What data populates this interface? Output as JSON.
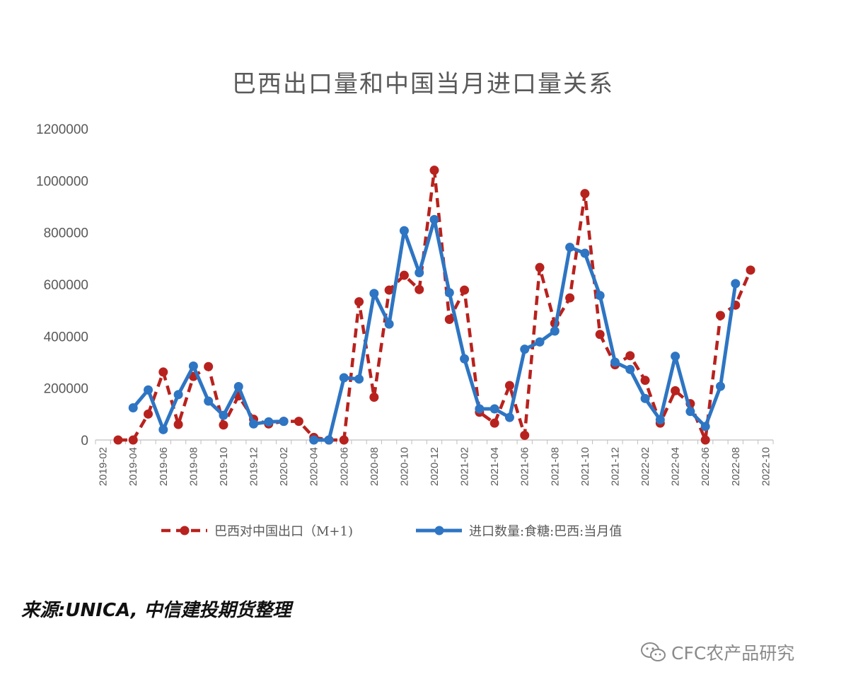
{
  "chart_data": {
    "type": "line",
    "title": "巴西出口量和中国当月进口量关系",
    "ylim": [
      0,
      1200000
    ],
    "yticks": [
      "0",
      "200000",
      "400000",
      "600000",
      "800000",
      "1000000",
      "1200000"
    ],
    "ytick_values": [
      0,
      200000,
      400000,
      600000,
      800000,
      1000000,
      1200000
    ],
    "x_labels": [
      "2019-02",
      "2019-04",
      "2019-06",
      "2019-08",
      "2019-10",
      "2019-12",
      "2020-02",
      "2020-04",
      "2020-06",
      "2020-08",
      "2020-10",
      "2020-12",
      "2021-02",
      "2021-04",
      "2021-06",
      "2021-08",
      "2021-10",
      "2021-12",
      "2022-02",
      "2022-04",
      "2022-06",
      "2022-08",
      "2022-10"
    ],
    "x": [
      "2019-02",
      "2019-03",
      "2019-04",
      "2019-05",
      "2019-06",
      "2019-07",
      "2019-08",
      "2019-09",
      "2019-10",
      "2019-11",
      "2019-12",
      "2020-01",
      "2020-02",
      "2020-03",
      "2020-04",
      "2020-05",
      "2020-06",
      "2020-07",
      "2020-08",
      "2020-09",
      "2020-10",
      "2020-11",
      "2020-12",
      "2021-01",
      "2021-02",
      "2021-03",
      "2021-04",
      "2021-05",
      "2021-06",
      "2021-07",
      "2021-08",
      "2021-09",
      "2021-10",
      "2021-11",
      "2021-12",
      "2022-01",
      "2022-02",
      "2022-03",
      "2022-04",
      "2022-05",
      "2022-06",
      "2022-07",
      "2022-08",
      "2022-09",
      "2022-10"
    ],
    "series": [
      {
        "name": "巴西对中国出口（M+1)",
        "color": "#b8221e",
        "dash": true,
        "values": [
          null,
          0,
          0,
          100000,
          262000,
          60000,
          245000,
          283000,
          58000,
          170000,
          80000,
          62000,
          72000,
          72000,
          10000,
          0,
          0,
          533000,
          165000,
          578000,
          635000,
          580000,
          1040000,
          465000,
          578000,
          107000,
          65000,
          210000,
          18000,
          665000,
          450000,
          548000,
          950000,
          407000,
          290000,
          325000,
          230000,
          65000,
          190000,
          140000,
          0,
          480000,
          520000,
          655000,
          null
        ]
      },
      {
        "name": "进口数量:食糖:巴西:当月值",
        "color": "#2e75c3",
        "dash": false,
        "values": [
          null,
          null,
          124000,
          193000,
          40000,
          175000,
          285000,
          150000,
          95000,
          206000,
          62000,
          70000,
          72000,
          null,
          0,
          0,
          240000,
          235000,
          565000,
          447000,
          807000,
          645000,
          850000,
          568000,
          313000,
          120000,
          120000,
          87000,
          350000,
          378000,
          420000,
          743000,
          720000,
          557000,
          300000,
          272000,
          160000,
          78000,
          323000,
          110000,
          52000,
          207000,
          603000,
          null,
          null
        ]
      }
    ],
    "legend_placement": "bottom",
    "grid": false
  },
  "source_text": "来源:UNICA, 中信建投期货整理",
  "watermark_text": "CFC农产品研究"
}
